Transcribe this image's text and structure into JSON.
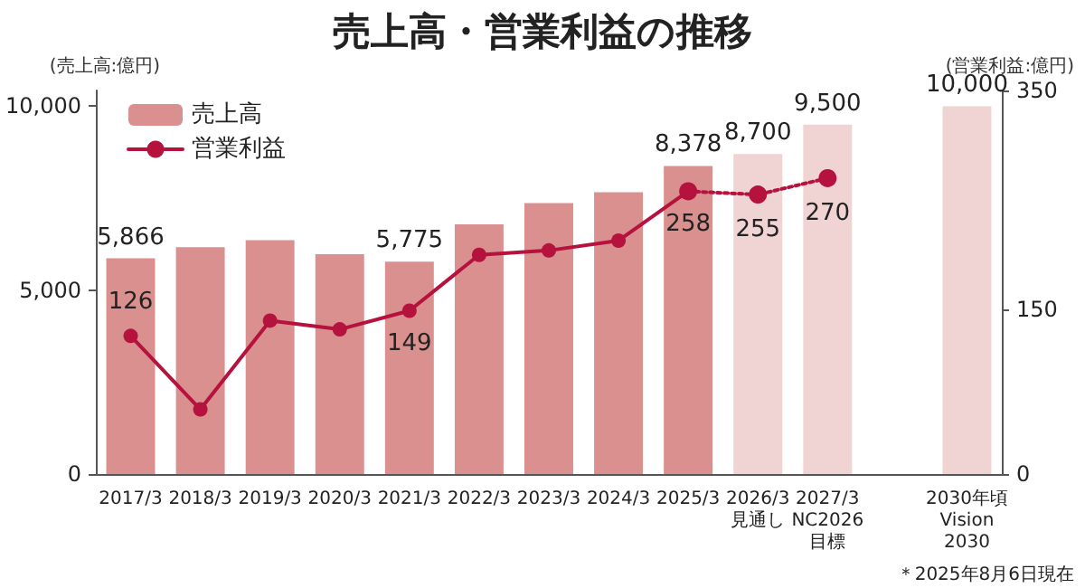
{
  "chart_data": {
    "type": "bar",
    "title": "売上高・営業利益の推移",
    "categories": [
      "2017/3",
      "2018/3",
      "2019/3",
      "2020/3",
      "2021/3",
      "2022/3",
      "2023/3",
      "2024/3",
      "2025/3",
      "2026/3\n見通し",
      "2027/3\nNC2026\n目標",
      null,
      "2030年頃\nVision\n2030"
    ],
    "series": [
      {
        "name": "売上高",
        "color": "#d9908f",
        "colors": [
          "#d9908f",
          "#d9908f",
          "#d9908f",
          "#d9908f",
          "#d9908f",
          "#d9908f",
          "#d9908f",
          "#d9908f",
          "#d9908f",
          "#f0d3d3",
          "#f0d3d3",
          null,
          "#f0d3d3"
        ],
        "values": [
          5866,
          6170,
          6360,
          5980,
          5775,
          6790,
          7370,
          7660,
          8378,
          8700,
          9500,
          null,
          10000
        ],
        "value_labels": [
          "5,866",
          null,
          null,
          null,
          "5,775",
          null,
          null,
          null,
          "8,378",
          "8,700",
          "9,500",
          null,
          "10,000"
        ]
      },
      {
        "name": "営業利益",
        "type": "line",
        "axis": "y2",
        "color": "#b5123e",
        "line_style": "solid",
        "marker": "circle",
        "values": [
          126,
          59,
          140,
          132,
          149,
          200,
          204,
          213,
          258,
          null,
          null,
          null,
          null
        ],
        "value_labels": [
          "126",
          null,
          null,
          null,
          "149",
          null,
          null,
          null,
          "258",
          null,
          null,
          null,
          null
        ]
      },
      {
        "type": "line",
        "axis": "y2",
        "color": "#b5123e",
        "line_style": "dotted",
        "marker": "circle",
        "values": [
          null,
          null,
          null,
          null,
          null,
          null,
          null,
          null,
          258,
          255,
          270,
          null,
          null
        ],
        "value_labels": [
          null,
          null,
          null,
          null,
          null,
          null,
          null,
          null,
          null,
          "255",
          "270",
          null,
          null
        ]
      }
    ],
    "ylabel": "(売上高:億円)",
    "y2label": "(営業利益:億円)",
    "ylim": [
      0,
      10430
    ],
    "yticks": [
      0,
      {
        "value": 5000,
        "label": "5,000"
      },
      {
        "value": 10000,
        "label": "10,000"
      }
    ],
    "y2lim": [
      0,
      350
    ],
    "y2ticks": [
      0,
      150,
      350
    ],
    "legend": "top left",
    "grid": false,
    "annotations": [
      "＊2025年8月6日現在"
    ]
  }
}
